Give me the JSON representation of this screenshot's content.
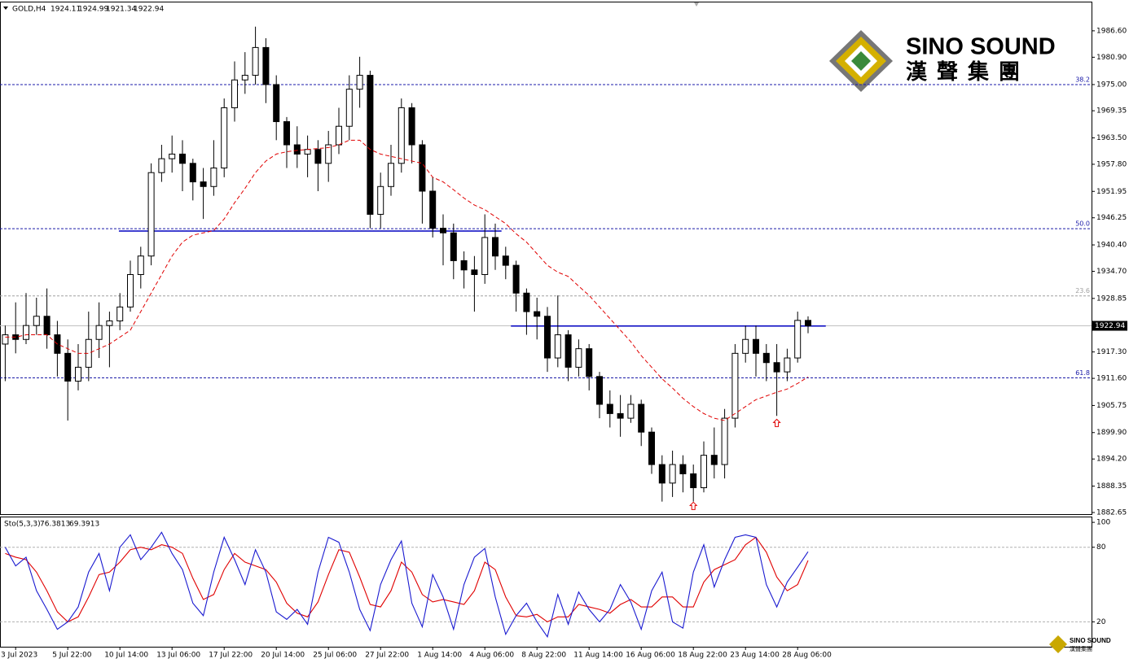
{
  "chart_data": [
    {
      "type": "candlestick",
      "title": "GOLD,H4",
      "categories": [
        null,
        "3 Jul 2023",
        null,
        null,
        null,
        null,
        "5 Jul 22:00",
        null,
        null,
        null,
        null,
        "10 Jul 14:00",
        null,
        null,
        null,
        null,
        "13 Jul 06:00",
        null,
        null,
        null,
        null,
        "17 Jul 22:00",
        null,
        null,
        null,
        null,
        "20 Jul 14:00",
        null,
        null,
        null,
        null,
        "25 Jul 06:00",
        null,
        null,
        null,
        null,
        "27 Jul 22:00",
        null,
        null,
        null,
        null,
        "1 Aug 14:00",
        null,
        null,
        null,
        null,
        "4 Aug 06:00",
        null,
        null,
        null,
        null,
        "8 Aug 22:00",
        null,
        null,
        null,
        null,
        "11 Aug 14:00",
        null,
        null,
        null,
        null,
        "16 Aug 06:00",
        null,
        null,
        null,
        null,
        "18 Aug 22:00",
        null,
        null,
        null,
        null,
        "23 Aug 14:00",
        null,
        null,
        null,
        null,
        "28 Aug 06:00",
        null
      ],
      "open": [
        1919,
        1921,
        1920,
        1923,
        1925,
        1921,
        1917,
        1911,
        1914,
        1920,
        1923,
        1924,
        1927,
        1934,
        1938,
        1956,
        1959,
        1960,
        1958,
        1954,
        1953,
        1957,
        1970,
        1976,
        1977,
        1983,
        1975,
        1967,
        1962,
        1960,
        1961,
        1958,
        1962,
        1966,
        1974,
        1977,
        1947,
        1953,
        1958,
        1970,
        1962,
        1952,
        1944,
        1943,
        1937,
        1935,
        1934,
        1942,
        1938,
        1936,
        1930,
        1926,
        1925,
        1916,
        1921,
        1914,
        1918,
        1912,
        1906,
        1904,
        1903,
        1906,
        1900,
        1893,
        1889,
        1893,
        1891,
        1888,
        1895,
        1893,
        1903,
        1917,
        1920,
        1917,
        1915,
        1913,
        1916,
        1924.11
      ],
      "high": [
        1923,
        1928,
        1930,
        1929,
        1931,
        1924,
        1920,
        1919,
        1926,
        1928,
        1926,
        1930,
        1937,
        1940,
        1958,
        1962,
        1964,
        1963,
        1959,
        1957,
        1963,
        1972,
        1980,
        1982,
        1987.5,
        1985,
        1977,
        1968,
        1966,
        1964,
        1963,
        1965,
        1970,
        1977,
        1981,
        1978,
        1956,
        1962,
        1972,
        1971,
        1963,
        1955,
        1947,
        1945,
        1939,
        1938,
        1947,
        1945,
        1940,
        1937,
        1931,
        1929,
        1927,
        1929.5,
        1922,
        1920,
        1919,
        1913,
        1909,
        1908,
        1908,
        1907,
        1901,
        1895,
        1896,
        1895,
        1893,
        1898,
        1901,
        1905,
        1919,
        1923,
        1923,
        1919,
        1919,
        1918,
        1926,
        1924.99
      ],
      "low": [
        1911,
        1917,
        1919,
        1921,
        1918,
        1912,
        1902.5,
        1909,
        1911,
        1916,
        1914,
        1922,
        1926,
        1931,
        1936,
        1954,
        1956,
        1952,
        1950,
        1946,
        1951,
        1955,
        1967,
        1973,
        1975,
        1971,
        1963,
        1957,
        1957,
        1955,
        1952,
        1954,
        1960,
        1963,
        1970,
        1944,
        1944,
        1951,
        1956,
        1958,
        1945,
        1942,
        1936,
        1933,
        1931,
        1926,
        1932,
        1935,
        1933,
        1926,
        1921,
        1920,
        1913,
        1914,
        1911,
        1912,
        1909,
        1903,
        1901,
        1899,
        1902,
        1897,
        1891,
        1885,
        1886,
        1887,
        1885,
        1887,
        1890,
        1890,
        1901,
        1915,
        1912,
        1911,
        1903.5,
        1911,
        1915,
        1921.34
      ],
      "close": [
        1921,
        1920,
        1923,
        1925,
        1921,
        1917,
        1911,
        1914,
        1920,
        1923,
        1924,
        1927,
        1934,
        1938,
        1956,
        1959,
        1960,
        1958,
        1954,
        1953,
        1957,
        1970,
        1976,
        1977,
        1983,
        1975,
        1967,
        1962,
        1960,
        1961,
        1958,
        1962,
        1966,
        1974,
        1977,
        1947,
        1953,
        1958,
        1970,
        1962,
        1952,
        1944,
        1943,
        1937,
        1935,
        1934,
        1942,
        1938,
        1936,
        1930,
        1926,
        1925,
        1916,
        1921,
        1914,
        1918,
        1912,
        1906,
        1904,
        1903,
        1906,
        1900,
        1893,
        1889,
        1893,
        1891,
        1888,
        1895,
        1893,
        1903,
        1917,
        1920,
        1917,
        1915,
        1913,
        1916,
        1924.11,
        1922.94
      ],
      "ma": {
        "color": "#e00000",
        "values": [
          1920.5,
          1920.5,
          1921,
          1921,
          1921,
          1919,
          1918,
          1917,
          1917,
          1918,
          1919,
          1920.5,
          1922,
          1926,
          1930,
          1934,
          1938,
          1941,
          1942.5,
          1943,
          1943.5,
          1946,
          1949.5,
          1952.6,
          1956,
          1958.5,
          1960,
          1960.5,
          1960.8,
          1961,
          1961.2,
          1961.4,
          1962,
          1963,
          1963,
          1961,
          1960,
          1959.5,
          1959,
          1958.5,
          1958,
          1955,
          1954,
          1952.3,
          1950.5,
          1949,
          1948,
          1946.5,
          1945,
          1942.8,
          1941,
          1938.5,
          1936,
          1934.5,
          1933.6,
          1931.5,
          1929.5,
          1927,
          1924.5,
          1922,
          1919.5,
          1916.5,
          1914,
          1911.5,
          1909.5,
          1907.3,
          1905.5,
          1904,
          1903,
          1902.5,
          1904,
          1905.5,
          1907,
          1907.8,
          1908.6,
          1909.3,
          1910.5,
          1911.9
        ]
      },
      "ylim": [
        1882.3,
        1992.9
      ],
      "yticks": [
        {
          "value": 1986.6,
          "label": "1986.60"
        },
        {
          "value": 1980.9,
          "label": "1980.90"
        },
        {
          "value": 1975,
          "label": "1975.00"
        },
        {
          "value": 1969.35,
          "label": "1969.35"
        },
        {
          "value": 1963.5,
          "label": "1963.50"
        },
        {
          "value": 1957.8,
          "label": "1957.80"
        },
        {
          "value": 1951.95,
          "label": "1951.95"
        },
        {
          "value": 1946.25,
          "label": "1946.25"
        },
        {
          "value": 1940.4,
          "label": "1940.40"
        },
        {
          "value": 1934.7,
          "label": "1934.70"
        },
        {
          "value": 1928.85,
          "label": "1928.85"
        },
        {
          "value": 1917.3,
          "label": "1917.30"
        },
        {
          "value": 1911.6,
          "label": "1911.60"
        },
        {
          "value": 1905.75,
          "label": "1905.75"
        },
        {
          "value": 1899.9,
          "label": "1899.90"
        },
        {
          "value": 1894.2,
          "label": "1894.20"
        },
        {
          "value": 1888.35,
          "label": "1888.35"
        },
        {
          "value": 1882.65,
          "label": "1882.65"
        }
      ],
      "levels": [
        {
          "label": "38.2",
          "value": 1975.0,
          "color": "#1a1aa8"
        },
        {
          "label": "50.0",
          "value": 1943.9,
          "color": "#1a1aa8"
        },
        {
          "label": "23.6",
          "value": 1929.4,
          "color": "#a0a0a0"
        },
        {
          "label": "61.8",
          "value": 1911.7,
          "color": "#1a1aa8"
        }
      ],
      "trendlines": [
        {
          "value": 1943.4,
          "from": 11.4,
          "to": 48.1,
          "color": "#0000c0"
        },
        {
          "value": 1922.9,
          "from": 49,
          "to": 79.2,
          "color": "#0000c0"
        }
      ],
      "arrows": [
        {
          "index": 66,
          "value": 1884.0
        },
        {
          "index": 74,
          "value": 1901.9
        }
      ],
      "arrow_color": "#e00000",
      "candle_color": "#000000",
      "logo": {
        "name": "SINO SOUND",
        "chinese": "漢聲集團"
      }
    },
    {
      "type": "line",
      "title": "Sto(5,3,3)",
      "series": [
        {
          "color": "#1a1ad0",
          "values": [
            80,
            65,
            72,
            45,
            30,
            14,
            20,
            32,
            60,
            75,
            45,
            80,
            90,
            70,
            80,
            92,
            75,
            62,
            35,
            25,
            60,
            88,
            70,
            50,
            78,
            60,
            28,
            22,
            30,
            18,
            60,
            88,
            84,
            60,
            30,
            13,
            50,
            70,
            85,
            35,
            16,
            58,
            40,
            14,
            50,
            72,
            79,
            40,
            10,
            25,
            35,
            20,
            8,
            42,
            18,
            44,
            30,
            20,
            30,
            50,
            36,
            14,
            45,
            60,
            20,
            15,
            60,
            82,
            48,
            70,
            88,
            90,
            88,
            50,
            32,
            52,
            64,
            76.3813
          ]
        },
        {
          "color": "#e00000",
          "values": [
            75,
            72,
            70,
            60,
            45,
            28,
            20,
            24,
            40,
            58,
            60,
            68,
            78,
            80,
            78,
            82,
            80,
            75,
            55,
            38,
            42,
            62,
            75,
            68,
            65,
            62,
            52,
            35,
            27,
            24,
            36,
            58,
            78,
            76,
            56,
            34,
            32,
            45,
            68,
            60,
            42,
            36,
            38,
            36,
            34,
            45,
            68,
            62,
            40,
            25,
            24,
            26,
            20,
            24,
            24,
            34,
            32,
            30,
            27,
            34,
            38,
            32,
            32,
            40,
            40,
            32,
            32,
            52,
            62,
            66,
            70,
            82,
            88,
            76,
            56,
            45,
            50,
            69.3913
          ]
        }
      ],
      "ylim": [
        0,
        104
      ],
      "yticks": [
        100,
        80,
        20
      ],
      "levels": [
        80,
        20
      ]
    }
  ]
}
